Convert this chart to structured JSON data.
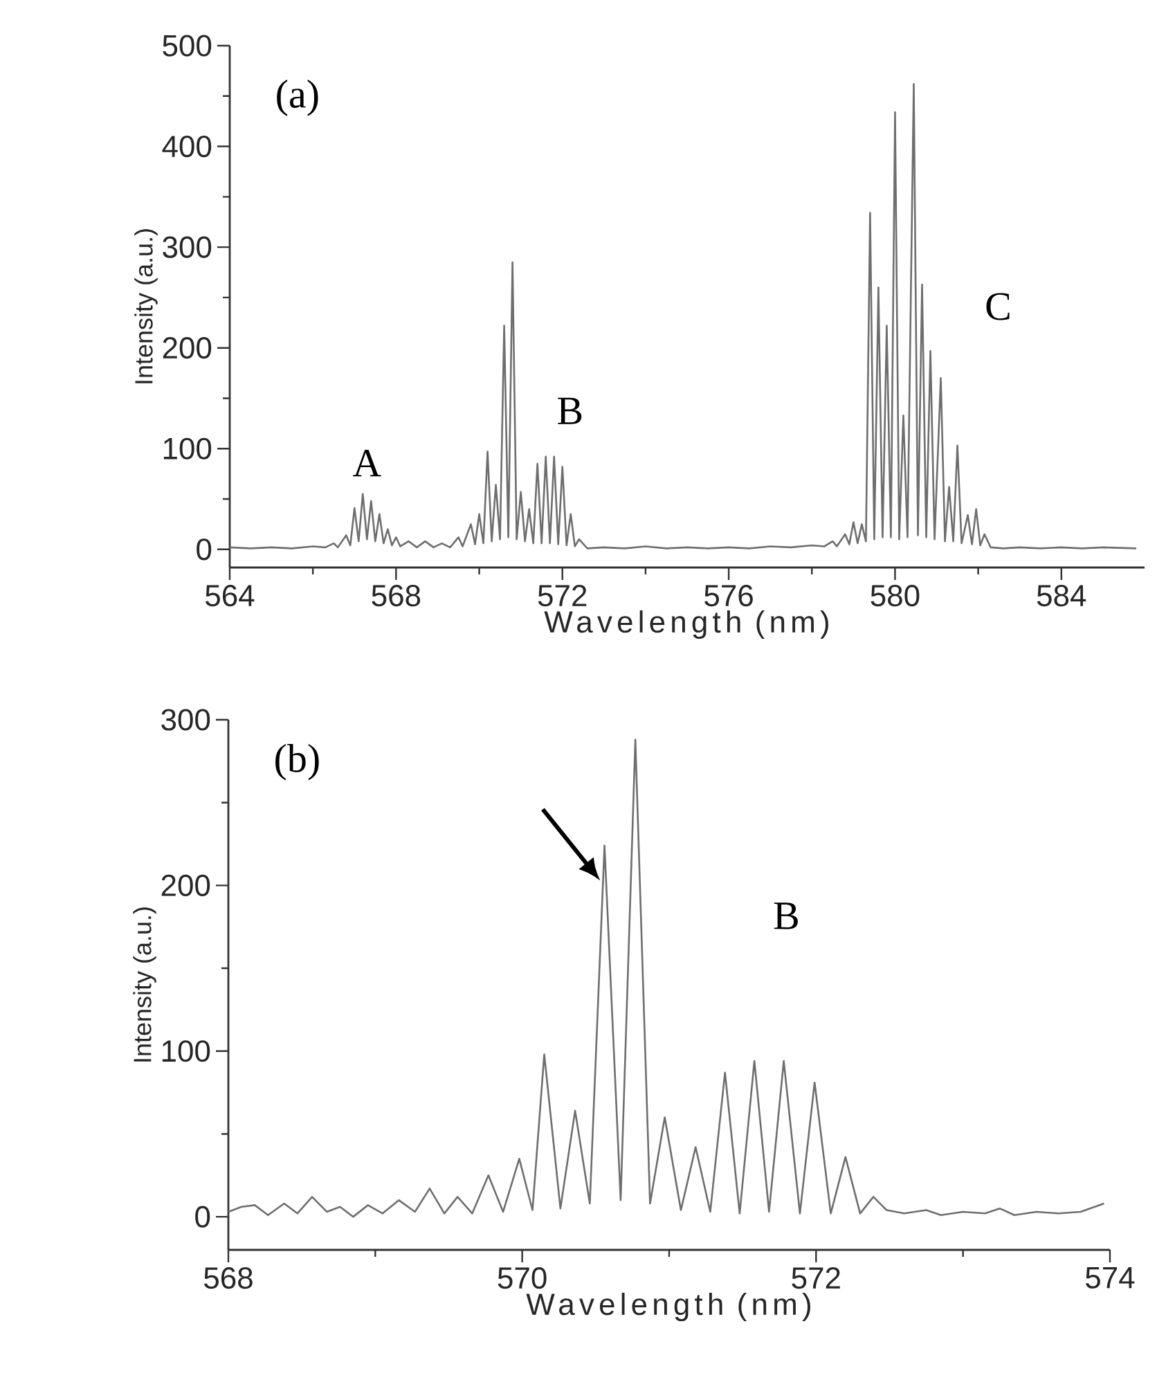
{
  "chart_data": [
    {
      "type": "line",
      "xlabel": "Wavelength (nm)",
      "ylabel": "Intensity (a.u.)",
      "xlim": [
        564,
        586
      ],
      "ylim": [
        -18,
        500
      ],
      "xticks": [
        564,
        568,
        572,
        576,
        580,
        584
      ],
      "yticks": [
        0,
        100,
        200,
        300,
        400,
        500
      ],
      "annotations": [
        "(a)",
        "A",
        "B",
        "C"
      ],
      "series": [
        {
          "color": "#6e6e6e",
          "x": [
            564.0,
            564.5,
            565.0,
            565.5,
            566.0,
            566.3,
            566.5,
            566.6,
            566.8,
            566.9,
            567.0,
            567.1,
            567.2,
            567.3,
            567.4,
            567.5,
            567.6,
            567.7,
            567.8,
            567.9,
            568.0,
            568.1,
            568.3,
            568.5,
            568.7,
            568.9,
            569.1,
            569.3,
            569.5,
            569.6,
            569.8,
            569.9,
            570.0,
            570.1,
            570.2,
            570.3,
            570.4,
            570.5,
            570.6,
            570.7,
            570.8,
            570.9,
            571.0,
            571.1,
            571.2,
            571.3,
            571.4,
            571.5,
            571.6,
            571.7,
            571.8,
            571.9,
            572.0,
            572.1,
            572.2,
            572.3,
            572.4,
            572.6,
            573.0,
            573.5,
            574.0,
            574.5,
            575.0,
            575.5,
            576.0,
            576.5,
            577.0,
            577.5,
            578.0,
            578.3,
            578.5,
            578.6,
            578.8,
            578.9,
            579.0,
            579.1,
            579.2,
            579.3,
            579.4,
            579.5,
            579.6,
            579.7,
            579.8,
            579.9,
            580.0,
            580.1,
            580.2,
            580.3,
            580.45,
            580.55,
            580.65,
            580.75,
            580.85,
            580.95,
            581.1,
            581.2,
            581.3,
            581.4,
            581.5,
            581.6,
            581.75,
            581.85,
            581.95,
            582.05,
            582.15,
            582.3,
            582.6,
            583.0,
            583.5,
            584.0,
            584.5,
            585.0,
            585.8
          ],
          "values": [
            2,
            1,
            2,
            1,
            3,
            2,
            6,
            2,
            14,
            4,
            41,
            8,
            55,
            10,
            48,
            8,
            35,
            6,
            20,
            4,
            12,
            3,
            8,
            2,
            8,
            2,
            6,
            2,
            12,
            3,
            25,
            5,
            35,
            6,
            97,
            8,
            64,
            10,
            222,
            12,
            285,
            10,
            57,
            8,
            40,
            6,
            85,
            6,
            92,
            6,
            92,
            5,
            82,
            4,
            35,
            3,
            10,
            1,
            2,
            1,
            3,
            1,
            2,
            1,
            2,
            1,
            3,
            2,
            4,
            3,
            8,
            3,
            15,
            5,
            27,
            6,
            25,
            8,
            334,
            10,
            260,
            12,
            222,
            12,
            434,
            10,
            133,
            12,
            462,
            14,
            263,
            12,
            197,
            10,
            170,
            8,
            62,
            8,
            103,
            6,
            34,
            5,
            40,
            4,
            15,
            2,
            1,
            2,
            1,
            2,
            1,
            2,
            1
          ]
        }
      ]
    },
    {
      "type": "line",
      "xlabel": "Wavelength (nm)",
      "ylabel": "Intensity (a.u.)",
      "xlim": [
        568,
        574
      ],
      "ylim": [
        -20,
        300
      ],
      "xticks": [
        568,
        570,
        572,
        574
      ],
      "yticks": [
        0,
        100,
        200,
        300
      ],
      "annotations": [
        "(b)",
        "B"
      ],
      "series": [
        {
          "color": "#6e6e6e",
          "x": [
            568.0,
            568.09,
            568.18,
            568.27,
            568.38,
            568.47,
            568.57,
            568.67,
            568.76,
            568.85,
            568.95,
            569.05,
            569.16,
            569.27,
            569.37,
            569.47,
            569.56,
            569.66,
            569.77,
            569.87,
            569.98,
            570.07,
            570.15,
            570.26,
            570.36,
            570.46,
            570.56,
            570.67,
            570.77,
            570.87,
            570.97,
            571.08,
            571.18,
            571.28,
            571.38,
            571.48,
            571.58,
            571.68,
            571.78,
            571.89,
            571.99,
            572.1,
            572.2,
            572.3,
            572.39,
            572.48,
            572.6,
            572.75,
            572.85,
            573.0,
            573.15,
            573.25,
            573.35,
            573.5,
            573.65,
            573.8,
            573.96
          ],
          "values": [
            3,
            6,
            7,
            1,
            8,
            2,
            12,
            3,
            6,
            0,
            7,
            2,
            10,
            3,
            17,
            2,
            12,
            2,
            25,
            3,
            35,
            4,
            98,
            5,
            64,
            8,
            224,
            10,
            288,
            8,
            60,
            4,
            42,
            3,
            87,
            2,
            94,
            3,
            94,
            2,
            81,
            2,
            36,
            2,
            12,
            4,
            2,
            4,
            1,
            3,
            2,
            5,
            1,
            3,
            2,
            3,
            8
          ]
        }
      ]
    }
  ]
}
